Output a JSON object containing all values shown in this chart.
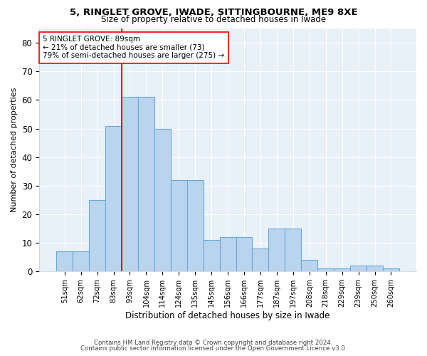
{
  "title1": "5, RINGLET GROVE, IWADE, SITTINGBOURNE, ME9 8XE",
  "title2": "Size of property relative to detached houses in Iwade",
  "xlabel": "Distribution of detached houses by size in Iwade",
  "ylabel": "Number of detached properties",
  "bar_labels": [
    "51sqm",
    "62sqm",
    "72sqm",
    "83sqm",
    "93sqm",
    "104sqm",
    "114sqm",
    "124sqm",
    "135sqm",
    "145sqm",
    "156sqm",
    "166sqm",
    "177sqm",
    "187sqm",
    "197sqm",
    "208sqm",
    "218sqm",
    "229sqm",
    "239sqm",
    "250sqm",
    "260sqm"
  ],
  "bar_values": [
    7,
    7,
    25,
    51,
    61,
    61,
    50,
    32,
    32,
    11,
    12,
    12,
    8,
    15,
    15,
    4,
    1,
    1,
    2,
    2,
    1
  ],
  "bar_color": "#bad4ee",
  "bar_edge_color": "#6aaad4",
  "vline_x": 3.5,
  "vline_color": "red",
  "annotation_text": "5 RINGLET GROVE: 89sqm\n← 21% of detached houses are smaller (73)\n79% of semi-detached houses are larger (275) →",
  "annotation_box_color": "white",
  "annotation_box_edge": "red",
  "ylim": [
    0,
    85
  ],
  "yticks": [
    0,
    10,
    20,
    30,
    40,
    50,
    60,
    70,
    80
  ],
  "footer1": "Contains HM Land Registry data © Crown copyright and database right 2024.",
  "footer2": "Contains public sector information licensed under the Open Government Licence v3.0.",
  "bg_color": "#ffffff",
  "plot_bg_color": "#e8f0f8"
}
